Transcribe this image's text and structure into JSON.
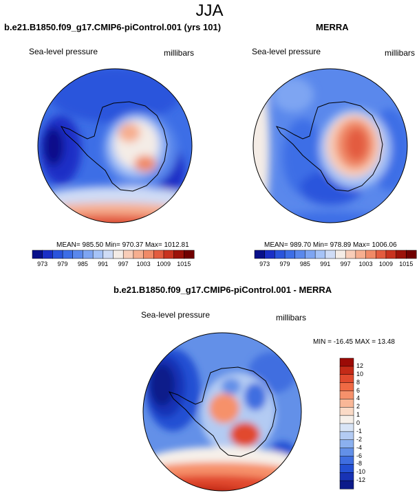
{
  "figure": {
    "title": "JJA"
  },
  "panels": [
    {
      "id": "model",
      "title": "b.e21.B1850.f09_g17.CMIP6-piControl.001 (yrs 101)",
      "left_label": "Sea-level pressure",
      "right_label": "millibars",
      "stats": "MEAN= 985.50  Min= 970.37  Max= 1012.81"
    },
    {
      "id": "obs",
      "title": "MERRA",
      "left_label": "Sea-level pressure",
      "right_label": "millibars",
      "stats": "MEAN= 989.70  Min= 978.89  Max= 1006.06"
    },
    {
      "id": "diff",
      "title": "b.e21.B1850.f09_g17.CMIP6-piControl.001 - MERRA",
      "left_label": "Sea-level pressure",
      "right_label": "millibars",
      "stats": "MIN = -16.45 MAX =  13.48"
    }
  ],
  "colorbar_abs": {
    "ticks": [
      "973",
      "979",
      "985",
      "991",
      "997",
      "1003",
      "1009",
      "1015"
    ],
    "colors": [
      "#08108a",
      "#1a2fc6",
      "#2a54dc",
      "#3d6ee6",
      "#5a88ec",
      "#7ea5f2",
      "#a6c3f7",
      "#cfdcf6",
      "#f4ece6",
      "#f8cdb8",
      "#f6ae8f",
      "#f08a67",
      "#e35c3f",
      "#c8331f",
      "#9c1209",
      "#700000"
    ]
  },
  "colorbar_diff": {
    "ticks": [
      "12",
      "10",
      "8",
      "6",
      "4",
      "2",
      "1",
      "0",
      "-1",
      "-2",
      "-4",
      "-6",
      "-8",
      "-10",
      "-12"
    ],
    "colors": [
      "#9c0b06",
      "#c42a17",
      "#e14a2e",
      "#f06a44",
      "#f6916b",
      "#f9b797",
      "#fadac6",
      "#f6f0ea",
      "#d8e4f6",
      "#b3cbf3",
      "#8bb0ef",
      "#6390e8",
      "#3f6ee0",
      "#2450d3",
      "#1833b5",
      "#0c1a8a"
    ]
  }
}
